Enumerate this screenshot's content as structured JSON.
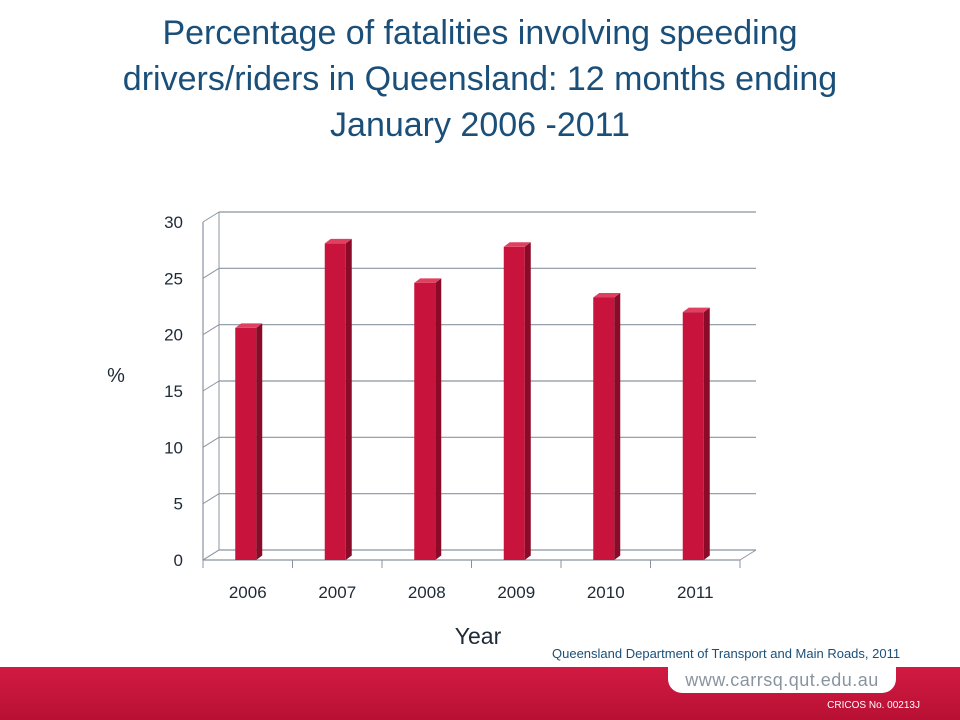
{
  "title_lines": [
    "Percentage of fatalities involving speeding",
    "drivers/riders in Queensland: 12 months ending",
    "January 2006 -2011"
  ],
  "chart_data": {
    "type": "bar",
    "title": "Percentage of fatalities involving speeding drivers/riders in Queensland: 12 months ending January 2006 -2011",
    "categories": [
      "2006",
      "2007",
      "2008",
      "2009",
      "2010",
      "2011"
    ],
    "values": [
      20.6,
      28.1,
      24.6,
      27.8,
      23.3,
      22.0
    ],
    "xlabel": "Year",
    "ylabel": "%",
    "ylim": [
      0,
      30
    ],
    "yticks": [
      0,
      5,
      10,
      15,
      20,
      25,
      30
    ],
    "grid": true,
    "legend": "none",
    "style": "3d-column"
  },
  "source_note": "Queensland Department of Transport and Main Roads, 2011",
  "footer": {
    "url": "www.carrsq.qut.edu.au",
    "cricos": "CRICOS No. 00213J"
  },
  "colors": {
    "title": "#1a4f7a",
    "bar": "#c8143c",
    "bar_dark": "#8a0a28",
    "bar_top": "#e04060",
    "footer_red": "#c8143c",
    "axis": "#8a94a0"
  }
}
